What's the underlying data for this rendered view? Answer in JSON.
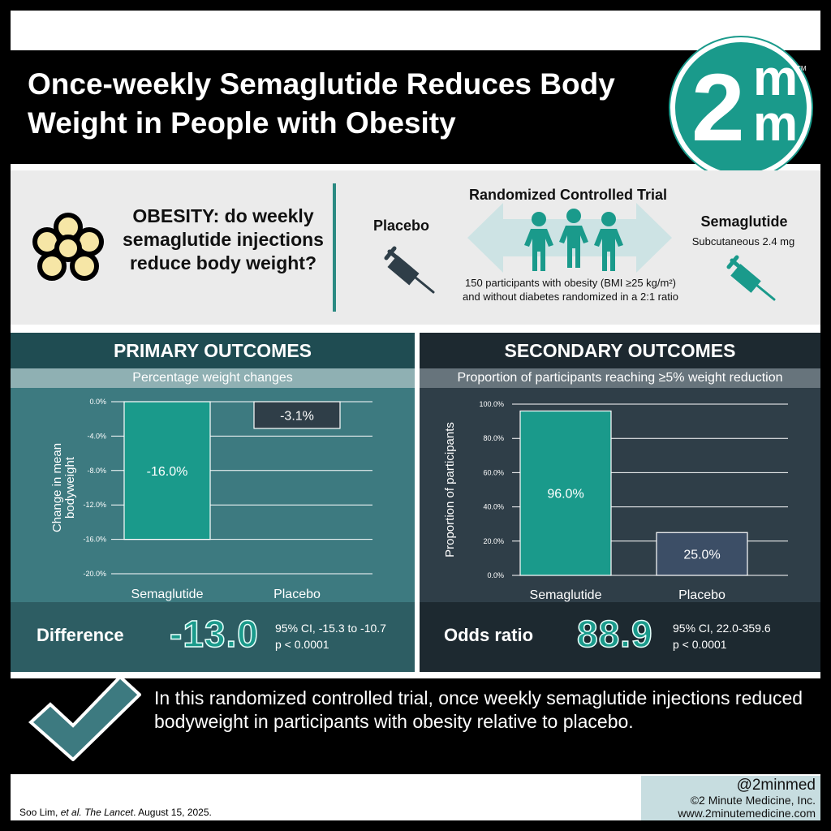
{
  "title": "Once-weekly Semaglutide Reduces Body Weight in People with Obesity",
  "logo": {
    "main": "2",
    "sup": "m",
    "sub": "m",
    "tm": "TM"
  },
  "question": "OBESITY: do weekly semaglutide injections reduce body weight?",
  "rct": {
    "title": "Randomized Controlled Trial",
    "placebo_label": "Placebo",
    "semaglutide_label": "Semaglutide",
    "semaglutide_dose": "Subcutaneous 2.4 mg",
    "description": "150 participants with obesity (BMI ≥25 kg/m²) and without diabetes randomized in a 2:1 ratio"
  },
  "primary": {
    "header": "PRIMARY OUTCOMES",
    "subtitle": "Percentage weight changes",
    "stat_label": "Difference",
    "stat_value": "-13.0",
    "ci": "95% CI, -15.3 to -10.7",
    "p": "p < 0.0001"
  },
  "secondary": {
    "header": "SECONDARY OUTCOMES",
    "subtitle": "Proportion of participants reaching ≥5% weight reduction",
    "stat_label": "Odds ratio",
    "stat_value": "88.9",
    "ci": "95% CI, 22.0-359.6",
    "p": "p < 0.0001"
  },
  "chart_data": [
    {
      "type": "bar",
      "categories": [
        "Semaglutide",
        "Placebo"
      ],
      "values": [
        -16.0,
        -3.1
      ],
      "value_labels": [
        "-16.0%",
        "-3.1%"
      ],
      "ylabel": "Change in mean bodyweight",
      "ylim": [
        -20,
        0
      ],
      "yticks": [
        "0.0%",
        "-4.0%",
        "-8.0%",
        "-12.0%",
        "-16.0%",
        "-20.0%"
      ],
      "colors": [
        "#1a9a8b",
        "#2f3e48"
      ],
      "grid": true
    },
    {
      "type": "bar",
      "categories": [
        "Semaglutide",
        "Placebo"
      ],
      "values": [
        96.0,
        25.0
      ],
      "value_labels": [
        "96.0%",
        "25.0%"
      ],
      "ylabel": "Proportion of participants",
      "ylim": [
        0,
        100
      ],
      "yticks": [
        "100.0%",
        "80.0%",
        "60.0%",
        "40.0%",
        "20.0%",
        "0.0%"
      ],
      "colors": [
        "#1a9a8b",
        "#3c4e66"
      ],
      "grid": true
    }
  ],
  "conclusion": "In this randomized controlled trial, once weekly semaglutide injections reduced bodyweight in participants with obesity relative to placebo.",
  "citation": {
    "authors": "Soo Lim, ",
    "etal": "et al.",
    "journal": "The Lancet",
    "date": ". August 15, 2025."
  },
  "brand": {
    "handle": "@2minmed",
    "copyright": "©2 Minute Medicine, Inc.",
    "url": "www.2minutemedicine.com"
  },
  "icons": [
    "flower-cells-icon",
    "syringe-icon",
    "people-icon",
    "double-arrow-icon",
    "checkmark-icon"
  ]
}
